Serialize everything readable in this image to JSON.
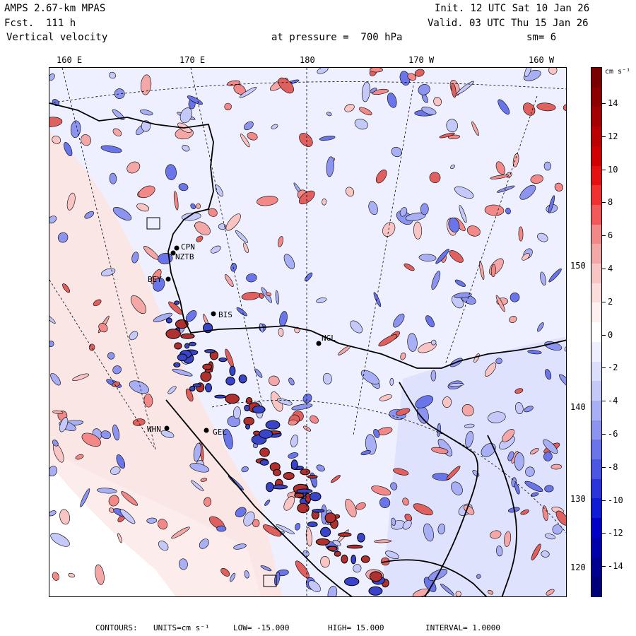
{
  "header": {
    "model": "AMPS 2.67-km MPAS",
    "forecast": "Fcst.  111 h",
    "field": "Vertical velocity",
    "init": "Init. 12 UTC Sat 10 Jan 26",
    "valid": "Valid. 03 UTC Thu 15 Jan 26",
    "pressure": "at pressure =  700 hPa",
    "smoothing": "sm= 6"
  },
  "longitude_labels": [
    "160 E",
    "170 E",
    "180",
    "170 W",
    "160 W"
  ],
  "latitude_labels": [
    "150 W",
    "140 W",
    "130 W",
    "120 W"
  ],
  "stations": [
    "CPN",
    "NZTB",
    "BEY",
    "BIS",
    "NGL",
    "WHN",
    "GEL"
  ],
  "colorbar": {
    "units_label": "cm s⁻¹",
    "tick_labels": [
      "14",
      "12",
      "10",
      "8",
      "6",
      "4",
      "2",
      "0",
      "-2",
      "-4",
      "-6",
      "-8",
      "-10",
      "-12",
      "-14"
    ],
    "colors": [
      "#7a0000",
      "#8e0000",
      "#a50000",
      "#bb0000",
      "#d10000",
      "#e61010",
      "#f23030",
      "#f25a5a",
      "#f28888",
      "#f4a7a7",
      "#f8c4c4",
      "#fadcdc",
      "#fdf0f0",
      "#ffffff",
      "#eef0ff",
      "#dcdffc",
      "#c5c9fa",
      "#a9aff5",
      "#8c94f0",
      "#6b75ea",
      "#4b56e3",
      "#2a35dc",
      "#0f1cd6",
      "#0000c8",
      "#0000ac",
      "#000090",
      "#000078"
    ]
  },
  "footer": {
    "contours": "CONTOURS:",
    "units": "UNITS=cm s⁻¹",
    "low": "LOW=  -15.000",
    "high": "HIGH=  15.000",
    "interval": "INTERVAL=   1.0000"
  }
}
